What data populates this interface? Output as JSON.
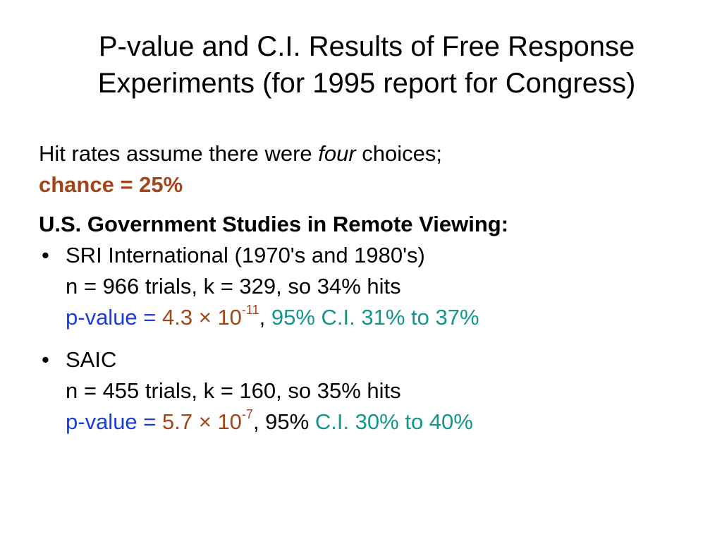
{
  "title": {
    "line1": "P-value and C.I. Results of Free Response",
    "line2": "Experiments (for 1995 report for Congress)"
  },
  "intro": {
    "text_before": "Hit rates assume there were ",
    "emphasis": "four",
    "text_after": " choices;",
    "chance": "chance = 25%"
  },
  "section_heading": "U.S. Government Studies in Remote Viewing:",
  "bullet_glyph": "•",
  "studies": [
    {
      "name": "SRI International (1970's and 1980's)",
      "stats": "n = 966 trials, k = 329, so 34% hits",
      "pvalue_label": "p-value = ",
      "pvalue_mantissa": "4.3 × 10",
      "pvalue_exponent": "-11",
      "separator": ", ",
      "ci_text": "95% C.I. 31% to 37%"
    },
    {
      "name": "SAIC",
      "stats": "n = 455 trials, k = 160, so 35% hits",
      "pvalue_label": "p-value = ",
      "pvalue_mantissa": "5.7 × 10",
      "pvalue_exponent": "-7",
      "separator": ", 95% ",
      "ci_text": "C.I. 30% to 40%"
    }
  ],
  "colors": {
    "chance": "#a0461c",
    "pvalue_label": "#1a3ddb",
    "pvalue_number": "#a0461c",
    "confidence_interval": "#13968c",
    "text": "#000000",
    "background": "#ffffff"
  }
}
